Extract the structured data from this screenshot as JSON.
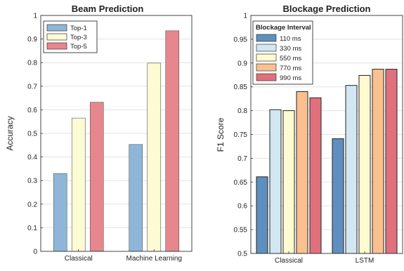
{
  "chart_data": [
    {
      "type": "bar",
      "title": "Beam Prediction",
      "xlabel": "",
      "ylabel": "Accuracy",
      "ylim": [
        0,
        1
      ],
      "yticks": [
        0,
        0.1,
        0.2,
        0.3,
        0.4,
        0.5,
        0.6,
        0.7,
        0.8,
        0.9,
        1
      ],
      "grid": true,
      "legend_position": "top-left",
      "legend_title": "",
      "categories": [
        "Classical",
        "Machine Learning"
      ],
      "series": [
        {
          "name": "Top-1",
          "color": "#8fb6d9",
          "values": [
            0.33,
            0.453
          ]
        },
        {
          "name": "Top-3",
          "color": "#fdfbd3",
          "values": [
            0.565,
            0.798
          ]
        },
        {
          "name": "Top-5",
          "color": "#e8868d",
          "values": [
            0.632,
            0.935
          ]
        }
      ]
    },
    {
      "type": "bar",
      "title": "Blockage Prediction",
      "xlabel": "",
      "ylabel": "F1 Score",
      "ylim": [
        0.5,
        1
      ],
      "yticks": [
        0.5,
        0.55,
        0.6,
        0.65,
        0.7,
        0.75,
        0.8,
        0.85,
        0.9,
        0.95,
        1
      ],
      "grid": true,
      "legend_position": "top-left",
      "legend_title": "Blockage Interval",
      "categories": [
        "Classical",
        "LSTM"
      ],
      "series": [
        {
          "name": "110 ms",
          "color": "#5f8fbe",
          "values": [
            0.661,
            0.741
          ]
        },
        {
          "name": "330 ms",
          "color": "#d2e7f2",
          "values": [
            0.802,
            0.853
          ]
        },
        {
          "name": "550 ms",
          "color": "#fefbd0",
          "values": [
            0.8,
            0.874
          ]
        },
        {
          "name": "770 ms",
          "color": "#fbc08f",
          "values": [
            0.84,
            0.887
          ]
        },
        {
          "name": "990 ms",
          "color": "#e0717c",
          "values": [
            0.827,
            0.887
          ]
        }
      ]
    }
  ]
}
